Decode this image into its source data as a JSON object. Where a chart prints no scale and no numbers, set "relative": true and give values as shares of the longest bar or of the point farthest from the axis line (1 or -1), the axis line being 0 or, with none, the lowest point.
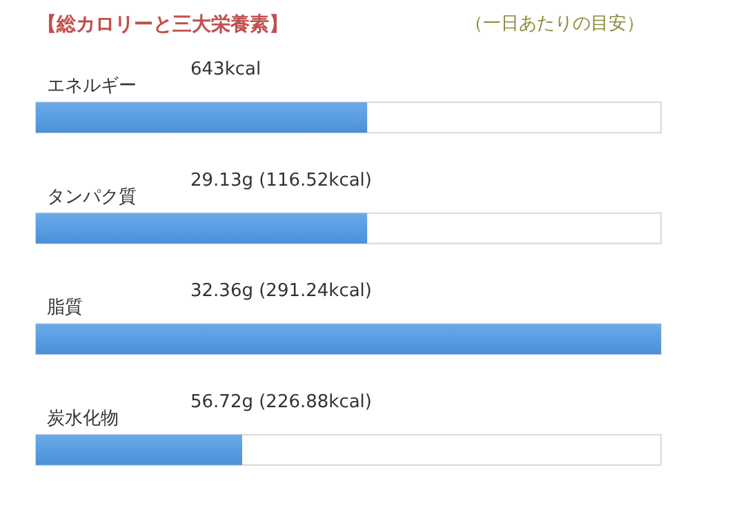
{
  "chart_data": {
    "type": "bar",
    "orientation": "horizontal",
    "relative": true,
    "title": "【総カロリーと三大栄養素】",
    "subtitle": "（一日あたりの目安）",
    "categories": [
      "エネルギー",
      "タンパク質",
      "脂質",
      "炭水化物"
    ],
    "values": [
      0.53,
      0.53,
      1,
      0.33
    ],
    "annotations": [
      "643kcal",
      "29.13g (116.52kcal)",
      "32.36g (291.24kcal)",
      "56.72g (226.88kcal)"
    ],
    "color": "#4a90d9",
    "grid": false
  }
}
